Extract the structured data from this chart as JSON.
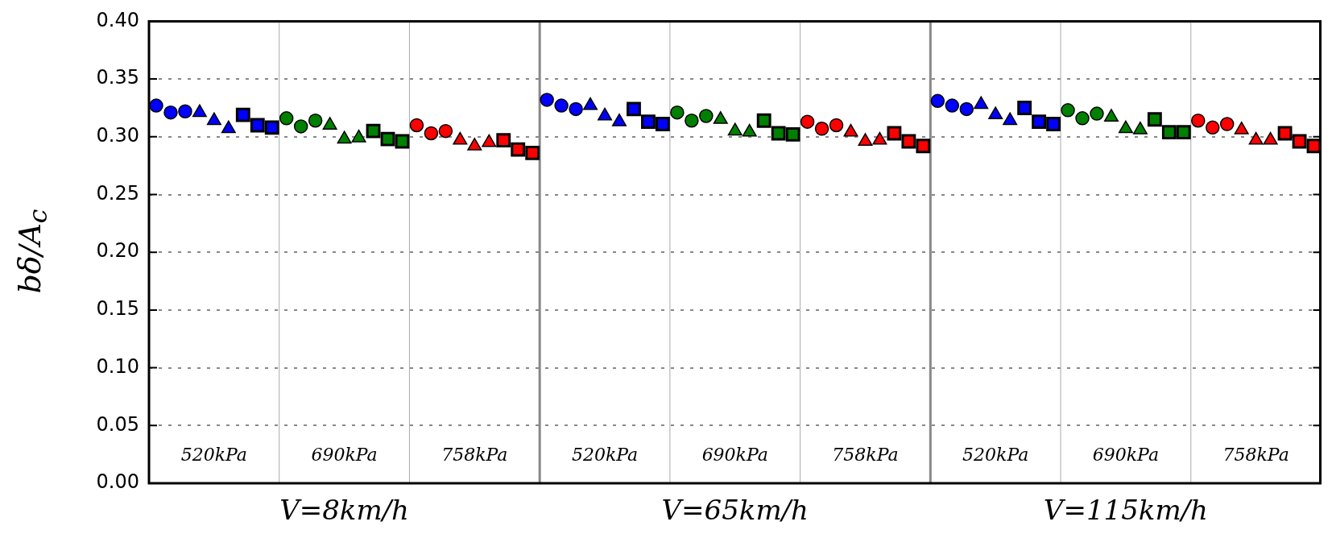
{
  "chart_data": {
    "type": "scatter",
    "ylabel": "bδ/A$_{c}$",
    "categories": [
      null,
      null,
      null,
      null,
      null,
      null,
      null,
      null,
      null,
      null,
      null,
      null,
      null,
      null,
      null,
      null,
      null,
      null,
      null,
      null,
      null,
      null,
      null,
      null,
      null,
      null,
      null,
      null,
      null,
      null,
      null,
      null,
      null,
      null,
      null,
      null,
      null,
      null,
      null,
      null,
      null,
      null,
      null,
      null,
      null,
      null,
      null,
      null,
      null,
      null,
      null,
      null,
      null,
      null,
      null,
      null,
      null,
      null,
      null,
      null,
      null,
      null,
      null,
      null,
      null,
      null,
      null,
      null,
      null,
      null,
      null,
      null,
      null,
      null,
      null,
      null,
      null,
      null,
      null,
      null,
      null
    ],
    "series": [
      {
        "color": "#0000ff",
        "marker": "circle",
        "values": [
          0.327,
          0.321,
          0.322,
          null,
          null,
          null,
          null,
          null,
          null,
          null,
          null,
          null,
          null,
          null,
          null,
          null,
          null,
          null,
          null,
          null,
          null,
          null,
          null,
          null,
          null,
          null,
          null,
          0.332,
          0.327,
          0.324,
          null,
          null,
          null,
          null,
          null,
          null,
          null,
          null,
          null,
          null,
          null,
          null,
          null,
          null,
          null,
          null,
          null,
          null,
          null,
          null,
          null,
          null,
          null,
          null,
          0.331,
          0.327,
          0.324,
          null,
          null,
          null,
          null,
          null,
          null,
          null,
          null,
          null,
          null,
          null,
          null,
          null,
          null,
          null,
          null,
          null,
          null,
          null,
          null,
          null,
          null,
          null,
          null
        ]
      },
      {
        "color": "#0000ff",
        "marker": "triangle",
        "values": [
          null,
          null,
          null,
          0.321,
          0.314,
          0.307,
          null,
          null,
          null,
          null,
          null,
          null,
          null,
          null,
          null,
          null,
          null,
          null,
          null,
          null,
          null,
          null,
          null,
          null,
          null,
          null,
          null,
          null,
          null,
          null,
          0.327,
          0.318,
          0.313,
          null,
          null,
          null,
          null,
          null,
          null,
          null,
          null,
          null,
          null,
          null,
          null,
          null,
          null,
          null,
          null,
          null,
          null,
          null,
          null,
          null,
          null,
          null,
          null,
          0.328,
          0.319,
          0.314,
          null,
          null,
          null,
          null,
          null,
          null,
          null,
          null,
          null,
          null,
          null,
          null,
          null,
          null,
          null,
          null,
          null,
          null,
          null,
          null,
          null
        ]
      },
      {
        "color": "#0000ff",
        "marker": "square",
        "values": [
          null,
          null,
          null,
          null,
          null,
          null,
          0.319,
          0.31,
          0.308,
          null,
          null,
          null,
          null,
          null,
          null,
          null,
          null,
          null,
          null,
          null,
          null,
          null,
          null,
          null,
          null,
          null,
          null,
          null,
          null,
          null,
          null,
          null,
          null,
          0.324,
          0.313,
          0.311,
          null,
          null,
          null,
          null,
          null,
          null,
          null,
          null,
          null,
          null,
          null,
          null,
          null,
          null,
          null,
          null,
          null,
          null,
          null,
          null,
          null,
          null,
          null,
          null,
          0.325,
          0.313,
          0.311,
          null,
          null,
          null,
          null,
          null,
          null,
          null,
          null,
          null,
          null,
          null,
          null,
          null,
          null,
          null,
          null,
          null,
          null
        ]
      },
      {
        "color": "#008000",
        "marker": "circle",
        "values": [
          null,
          null,
          null,
          null,
          null,
          null,
          null,
          null,
          null,
          0.316,
          0.309,
          0.314,
          null,
          null,
          null,
          null,
          null,
          null,
          null,
          null,
          null,
          null,
          null,
          null,
          null,
          null,
          null,
          null,
          null,
          null,
          null,
          null,
          null,
          null,
          null,
          null,
          0.321,
          0.314,
          0.318,
          null,
          null,
          null,
          null,
          null,
          null,
          null,
          null,
          null,
          null,
          null,
          null,
          null,
          null,
          null,
          null,
          null,
          null,
          null,
          null,
          null,
          null,
          null,
          null,
          0.323,
          0.316,
          0.32,
          null,
          null,
          null,
          null,
          null,
          null,
          null,
          null,
          null,
          null,
          null,
          null,
          null,
          null,
          null
        ]
      },
      {
        "color": "#008000",
        "marker": "triangle",
        "values": [
          null,
          null,
          null,
          null,
          null,
          null,
          null,
          null,
          null,
          null,
          null,
          null,
          0.31,
          0.298,
          0.299,
          null,
          null,
          null,
          null,
          null,
          null,
          null,
          null,
          null,
          null,
          null,
          null,
          null,
          null,
          null,
          null,
          null,
          null,
          null,
          null,
          null,
          null,
          null,
          null,
          0.315,
          0.305,
          0.304,
          null,
          null,
          null,
          null,
          null,
          null,
          null,
          null,
          null,
          null,
          null,
          null,
          null,
          null,
          null,
          null,
          null,
          null,
          null,
          null,
          null,
          null,
          null,
          null,
          0.317,
          0.307,
          0.306,
          null,
          null,
          null,
          null,
          null,
          null,
          null,
          null,
          null,
          null,
          null,
          null
        ]
      },
      {
        "color": "#008000",
        "marker": "square",
        "values": [
          null,
          null,
          null,
          null,
          null,
          null,
          null,
          null,
          null,
          null,
          null,
          null,
          null,
          null,
          null,
          0.305,
          0.298,
          0.296,
          null,
          null,
          null,
          null,
          null,
          null,
          null,
          null,
          null,
          null,
          null,
          null,
          null,
          null,
          null,
          null,
          null,
          null,
          null,
          null,
          null,
          null,
          null,
          null,
          0.314,
          0.303,
          0.302,
          null,
          null,
          null,
          null,
          null,
          null,
          null,
          null,
          null,
          null,
          null,
          null,
          null,
          null,
          null,
          null,
          null,
          null,
          null,
          null,
          null,
          null,
          null,
          null,
          0.315,
          0.304,
          0.304,
          null,
          null,
          null,
          null,
          null,
          null,
          null,
          null,
          null
        ]
      },
      {
        "color": "#ff0000",
        "marker": "circle",
        "values": [
          null,
          null,
          null,
          null,
          null,
          null,
          null,
          null,
          null,
          null,
          null,
          null,
          null,
          null,
          null,
          null,
          null,
          null,
          0.31,
          0.303,
          0.305,
          null,
          null,
          null,
          null,
          null,
          null,
          null,
          null,
          null,
          null,
          null,
          null,
          null,
          null,
          null,
          null,
          null,
          null,
          null,
          null,
          null,
          null,
          null,
          null,
          0.313,
          0.307,
          0.31,
          null,
          null,
          null,
          null,
          null,
          null,
          null,
          null,
          null,
          null,
          null,
          null,
          null,
          null,
          null,
          null,
          null,
          null,
          null,
          null,
          null,
          null,
          null,
          null,
          0.314,
          0.308,
          0.311,
          null,
          null,
          null,
          null,
          null,
          null
        ]
      },
      {
        "color": "#ff0000",
        "marker": "triangle",
        "values": [
          null,
          null,
          null,
          null,
          null,
          null,
          null,
          null,
          null,
          null,
          null,
          null,
          null,
          null,
          null,
          null,
          null,
          null,
          null,
          null,
          null,
          0.297,
          0.292,
          0.295,
          null,
          null,
          null,
          null,
          null,
          null,
          null,
          null,
          null,
          null,
          null,
          null,
          null,
          null,
          null,
          null,
          null,
          null,
          null,
          null,
          null,
          null,
          null,
          null,
          0.304,
          0.296,
          0.297,
          null,
          null,
          null,
          null,
          null,
          null,
          null,
          null,
          null,
          null,
          null,
          null,
          null,
          null,
          null,
          null,
          null,
          null,
          null,
          null,
          null,
          null,
          null,
          null,
          0.306,
          0.297,
          0.297,
          null,
          null,
          null
        ]
      },
      {
        "color": "#ff0000",
        "marker": "square",
        "values": [
          null,
          null,
          null,
          null,
          null,
          null,
          null,
          null,
          null,
          null,
          null,
          null,
          null,
          null,
          null,
          null,
          null,
          null,
          null,
          null,
          null,
          null,
          null,
          null,
          0.297,
          0.289,
          0.286,
          null,
          null,
          null,
          null,
          null,
          null,
          null,
          null,
          null,
          null,
          null,
          null,
          null,
          null,
          null,
          null,
          null,
          null,
          null,
          null,
          null,
          null,
          null,
          null,
          0.303,
          0.296,
          0.292,
          null,
          null,
          null,
          null,
          null,
          null,
          null,
          null,
          null,
          null,
          null,
          null,
          null,
          null,
          null,
          null,
          null,
          null,
          null,
          null,
          null,
          null,
          null,
          null,
          0.303,
          0.296,
          0.292
        ]
      }
    ],
    "ylim": [
      0,
      0.4
    ],
    "yticks": [
      {
        "value": 0,
        "label": "0.00"
      },
      {
        "value": 0.05,
        "label": "0.05"
      },
      {
        "value": 0.1,
        "label": "0.10"
      },
      {
        "value": 0.15,
        "label": "0.15"
      },
      {
        "value": 0.2,
        "label": "0.20"
      },
      {
        "value": 0.25,
        "label": "0.25"
      },
      {
        "value": 0.3,
        "label": "0.30"
      },
      {
        "value": 0.35,
        "label": "0.35"
      },
      {
        "value": 0.4,
        "label": "0.40"
      }
    ],
    "grid": "y",
    "legend": false,
    "tick_labels": "y",
    "annotations": [
      "520kPa",
      "690kPa",
      "758kPa",
      "520kPa",
      "690kPa",
      "758kPa",
      "520kPa",
      "690kPa",
      "758kPa",
      "V=8km/h",
      "V=65km/h",
      "V=115km/h"
    ]
  }
}
